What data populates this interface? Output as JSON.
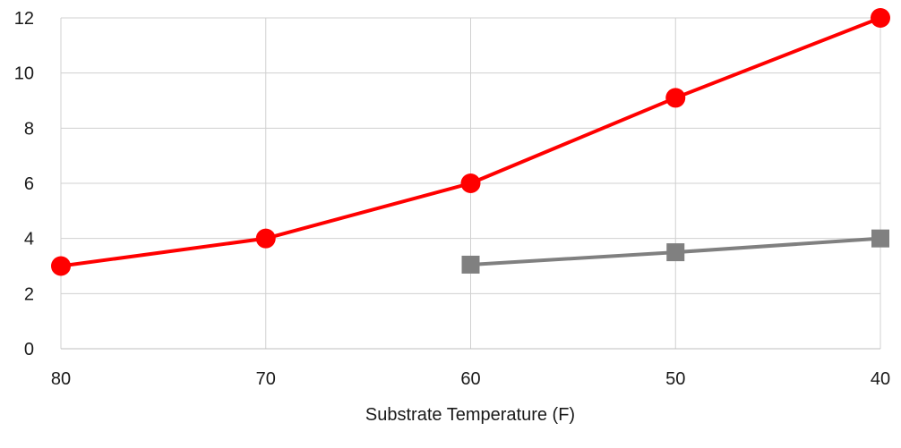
{
  "chart_data": {
    "type": "line",
    "title": "",
    "xlabel": "Substrate Temperature (F)",
    "ylabel": "",
    "x": [
      80,
      70,
      60,
      50,
      40
    ],
    "x_reversed": true,
    "xlim": [
      80,
      40
    ],
    "ylim": [
      0,
      12
    ],
    "yticks": [
      0,
      2,
      4,
      6,
      8,
      10,
      12
    ],
    "xticks": [
      80,
      70,
      60,
      50,
      40
    ],
    "grid": true,
    "legend": "none",
    "series": [
      {
        "values": [
          3,
          4,
          6,
          9.1,
          12
        ],
        "color": "#ff0000",
        "marker": "circle"
      },
      {
        "values": [
          null,
          null,
          3.05,
          3.5,
          4
        ],
        "color": "#808080",
        "marker": "square"
      }
    ]
  }
}
